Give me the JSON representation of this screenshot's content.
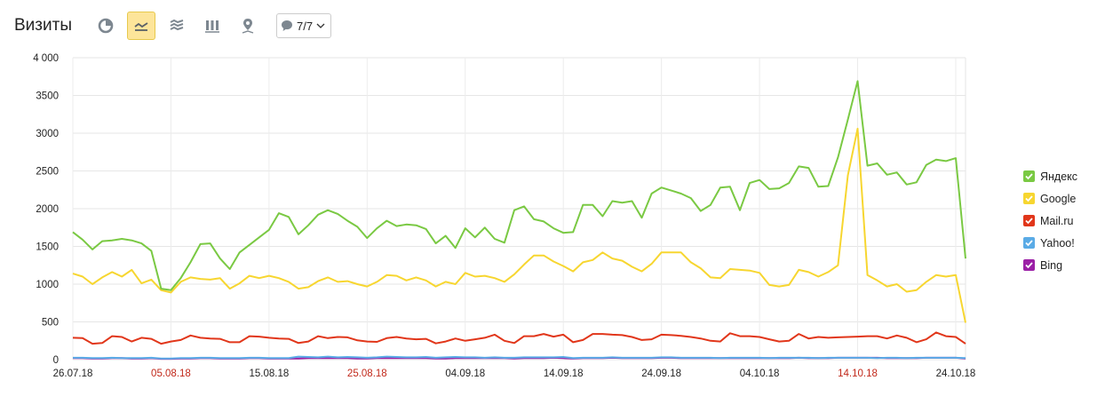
{
  "header": {
    "title": "Визиты",
    "dropdown_value": "7/7"
  },
  "toolbar": {
    "buttons": [
      {
        "icon": "pie-chart-icon",
        "active": false
      },
      {
        "icon": "line-chart-icon",
        "active": true
      },
      {
        "icon": "stacked-area-icon",
        "active": false
      },
      {
        "icon": "bar-chart-icon",
        "active": false
      },
      {
        "icon": "map-pin-icon",
        "active": false
      }
    ]
  },
  "colors": {
    "yandex": "#7ac943",
    "google": "#f7d630",
    "mailru": "#e1361a",
    "yahoo": "#5aabe6",
    "bing": "#9b1fa6",
    "weekend": "#c1281a",
    "accent": "#fde59a"
  },
  "chart_data": {
    "type": "line",
    "ylim": [
      0,
      4000
    ],
    "yticks": [
      0,
      500,
      1000,
      1500,
      2000,
      2500,
      3000,
      3500,
      4000
    ],
    "ytick_labels": [
      "0",
      "500",
      "1000",
      "1500",
      "2000",
      "2500",
      "3000",
      "3500",
      "4 000"
    ],
    "x_start": "26.07.18",
    "x_end": "24.10.18",
    "grid": true,
    "legend_position": "right",
    "xticks": [
      {
        "label": "26.07.18",
        "day": 0,
        "weekend": false
      },
      {
        "label": "05.08.18",
        "day": 10,
        "weekend": true
      },
      {
        "label": "15.08.18",
        "day": 20,
        "weekend": false
      },
      {
        "label": "25.08.18",
        "day": 30,
        "weekend": true
      },
      {
        "label": "04.09.18",
        "day": 40,
        "weekend": false
      },
      {
        "label": "14.09.18",
        "day": 50,
        "weekend": false
      },
      {
        "label": "24.09.18",
        "day": 60,
        "weekend": false
      },
      {
        "label": "04.10.18",
        "day": 70,
        "weekend": false
      },
      {
        "label": "14.10.18",
        "day": 80,
        "weekend": true
      },
      {
        "label": "24.10.18",
        "day": 90,
        "weekend": false
      }
    ],
    "series": [
      {
        "name": "Яндекс",
        "key": "yandex",
        "color": "#7ac943",
        "values": [
          1690,
          1590,
          1460,
          1570,
          1580,
          1600,
          1580,
          1540,
          1440,
          940,
          920,
          1080,
          1290,
          1530,
          1540,
          1340,
          1200,
          1420,
          1520,
          1620,
          1720,
          1940,
          1890,
          1660,
          1780,
          1920,
          1980,
          1930,
          1840,
          1760,
          1610,
          1740,
          1840,
          1770,
          1790,
          1780,
          1730,
          1540,
          1640,
          1480,
          1740,
          1620,
          1750,
          1600,
          1550,
          1980,
          2030,
          1860,
          1830,
          1740,
          1680,
          1690,
          2050,
          2050,
          1900,
          2100,
          2080,
          2100,
          1880,
          2200,
          2280,
          2240,
          2200,
          2140,
          1970,
          2050,
          2280,
          2290,
          1980,
          2340,
          2380,
          2260,
          2270,
          2340,
          2560,
          2540,
          2290,
          2300,
          2680,
          3180,
          3690,
          2570,
          2600,
          2450,
          2480,
          2320,
          2350,
          2580,
          2650,
          2630,
          2670,
          1340
        ]
      },
      {
        "name": "Google",
        "key": "google",
        "color": "#f7d630",
        "values": [
          1140,
          1100,
          1000,
          1090,
          1160,
          1100,
          1190,
          1010,
          1060,
          920,
          890,
          1030,
          1090,
          1070,
          1060,
          1080,
          940,
          1010,
          1110,
          1080,
          1110,
          1080,
          1030,
          940,
          960,
          1040,
          1090,
          1030,
          1040,
          1000,
          970,
          1030,
          1120,
          1110,
          1050,
          1090,
          1050,
          970,
          1030,
          1000,
          1150,
          1100,
          1110,
          1080,
          1030,
          1130,
          1260,
          1380,
          1380,
          1300,
          1240,
          1170,
          1290,
          1320,
          1420,
          1340,
          1310,
          1230,
          1170,
          1270,
          1420,
          1420,
          1420,
          1290,
          1210,
          1090,
          1080,
          1200,
          1190,
          1180,
          1150,
          990,
          970,
          990,
          1190,
          1160,
          1100,
          1160,
          1250,
          2440,
          3060,
          1120,
          1050,
          970,
          1000,
          900,
          920,
          1030,
          1120,
          1100,
          1120,
          490
        ]
      },
      {
        "name": "Mail.ru",
        "key": "mailru",
        "color": "#e1361a",
        "values": [
          290,
          285,
          210,
          220,
          310,
          300,
          240,
          290,
          275,
          210,
          240,
          260,
          320,
          290,
          280,
          275,
          230,
          230,
          310,
          305,
          290,
          280,
          275,
          220,
          240,
          310,
          285,
          300,
          295,
          255,
          240,
          235,
          285,
          300,
          280,
          270,
          275,
          215,
          240,
          280,
          250,
          270,
          290,
          330,
          250,
          220,
          310,
          310,
          340,
          305,
          330,
          230,
          260,
          340,
          340,
          330,
          325,
          300,
          260,
          270,
          330,
          325,
          315,
          300,
          280,
          250,
          240,
          350,
          310,
          310,
          300,
          270,
          240,
          250,
          340,
          280,
          300,
          290,
          295,
          300,
          305,
          310,
          310,
          280,
          320,
          290,
          230,
          270,
          360,
          310,
          300,
          210
        ]
      },
      {
        "name": "Yahoo!",
        "key": "yahoo",
        "color": "#5aabe6",
        "values": [
          25,
          25,
          20,
          20,
          25,
          20,
          20,
          20,
          25,
          15,
          15,
          20,
          20,
          25,
          25,
          20,
          20,
          20,
          25,
          25,
          20,
          20,
          20,
          40,
          35,
          30,
          40,
          30,
          35,
          30,
          25,
          30,
          40,
          35,
          30,
          30,
          35,
          25,
          30,
          35,
          30,
          30,
          25,
          30,
          25,
          25,
          30,
          30,
          30,
          30,
          35,
          20,
          25,
          25,
          25,
          30,
          25,
          25,
          25,
          25,
          30,
          30,
          25,
          25,
          25,
          25,
          20,
          25,
          25,
          25,
          25,
          20,
          25,
          25,
          25,
          25,
          20,
          25,
          25,
          25,
          25,
          25,
          20,
          25,
          25,
          20,
          25,
          25,
          25,
          25,
          25,
          20
        ]
      },
      {
        "name": "Bing",
        "key": "bing",
        "color": "#9b1fa6",
        "values": [
          20,
          20,
          15,
          15,
          20,
          20,
          15,
          15,
          20,
          10,
          10,
          15,
          15,
          20,
          20,
          15,
          15,
          15,
          20,
          20,
          15,
          15,
          15,
          15,
          20,
          20,
          20,
          20,
          20,
          15,
          15,
          20,
          20,
          20,
          20,
          20,
          20,
          15,
          15,
          20,
          20,
          20,
          20,
          20,
          20,
          15,
          20,
          20,
          20,
          25,
          20,
          15,
          20,
          20,
          20,
          25,
          20,
          20,
          20,
          20,
          25,
          25,
          20,
          20,
          20,
          20,
          20,
          20,
          20,
          20,
          20,
          20,
          20,
          20,
          25,
          20,
          20,
          20,
          25,
          25,
          25,
          25,
          25,
          20,
          20,
          20,
          20,
          25,
          25,
          25,
          25,
          15
        ]
      }
    ]
  }
}
